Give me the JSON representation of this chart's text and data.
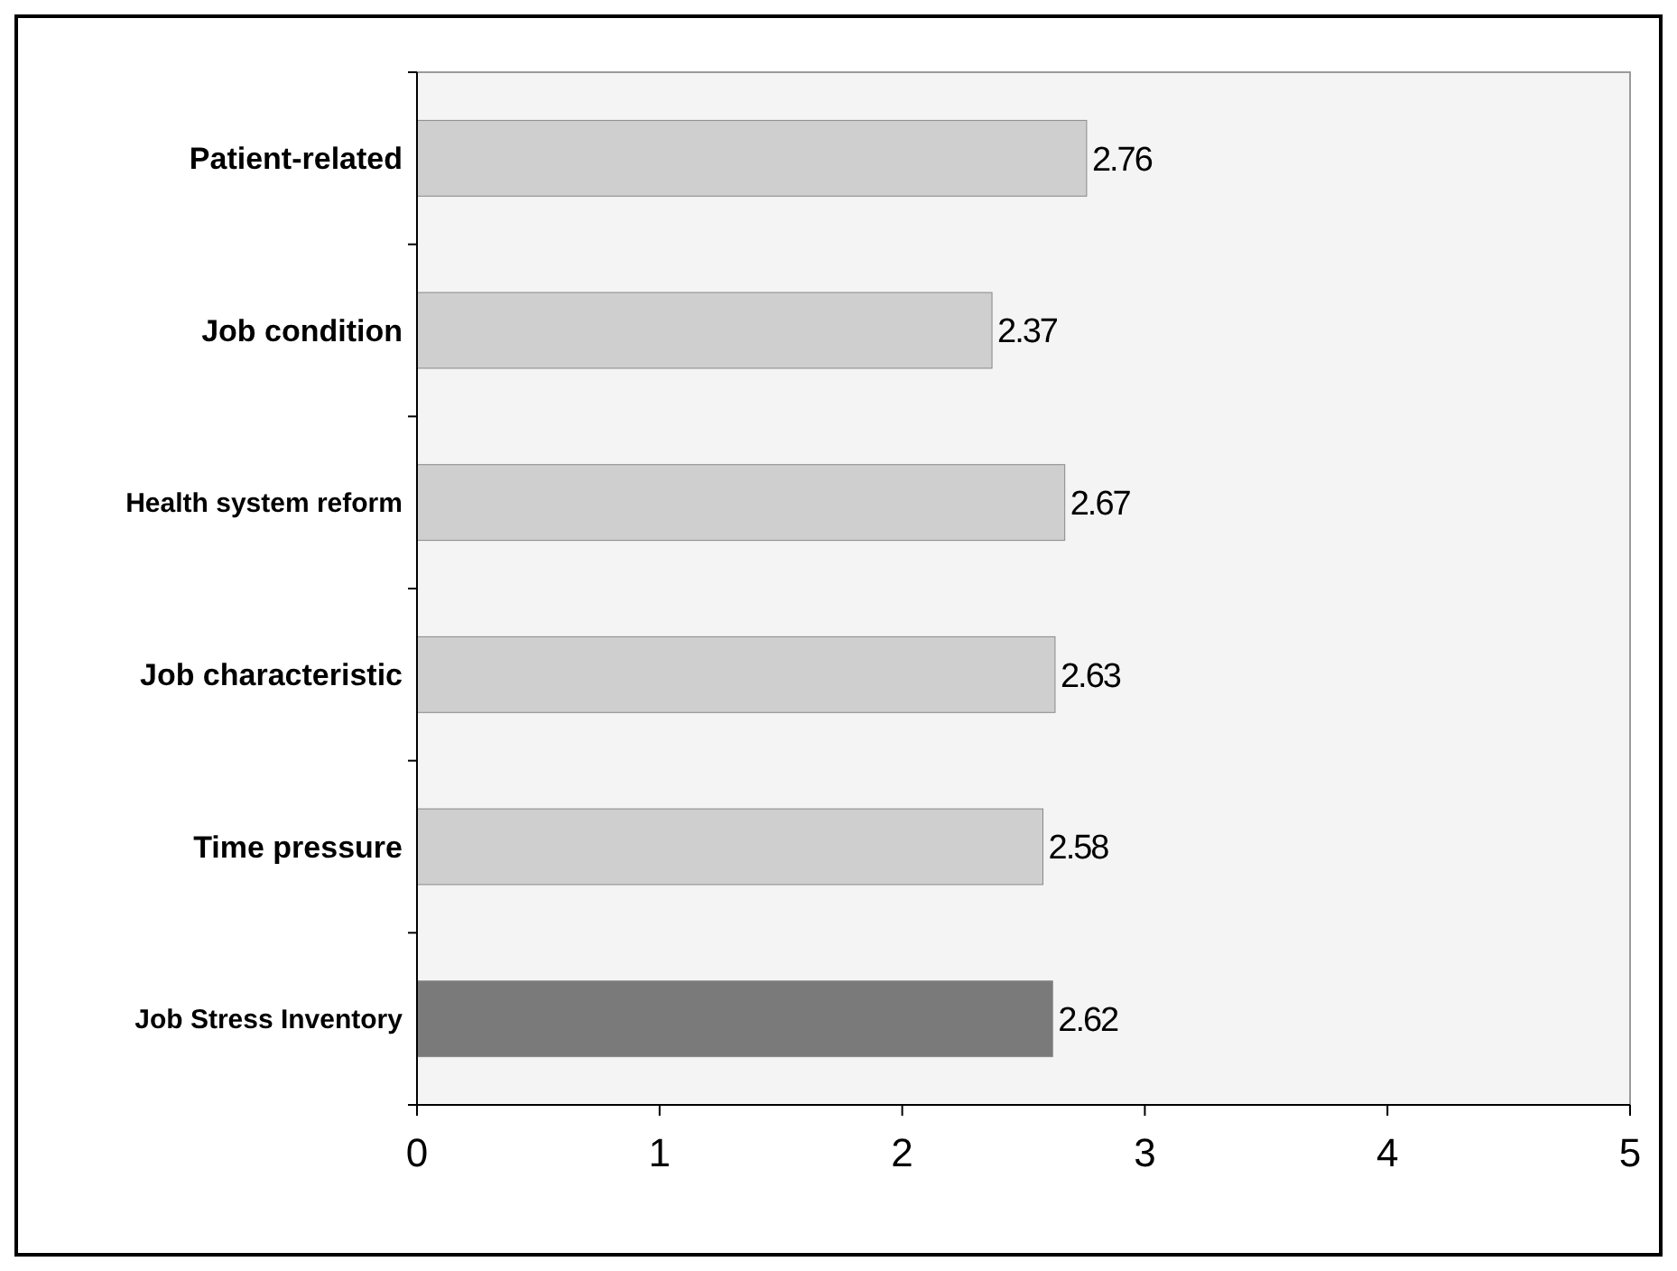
{
  "chart_data": {
    "type": "bar",
    "orientation": "horizontal",
    "categories": [
      "Patient-related",
      "Job condition",
      "Health system reform",
      "Job characteristic",
      "Time pressure",
      "Job Stress Inventory"
    ],
    "values": [
      2.76,
      2.37,
      2.67,
      2.63,
      2.58,
      2.62
    ],
    "colors": [
      "#cfcfcf",
      "#cfcfcf",
      "#cfcfcf",
      "#cfcfcf",
      "#cfcfcf",
      "#7a7a7a"
    ],
    "xlim": [
      0,
      5
    ],
    "xticks": [
      0,
      1,
      2,
      3,
      4,
      5
    ],
    "data_labels": true
  }
}
